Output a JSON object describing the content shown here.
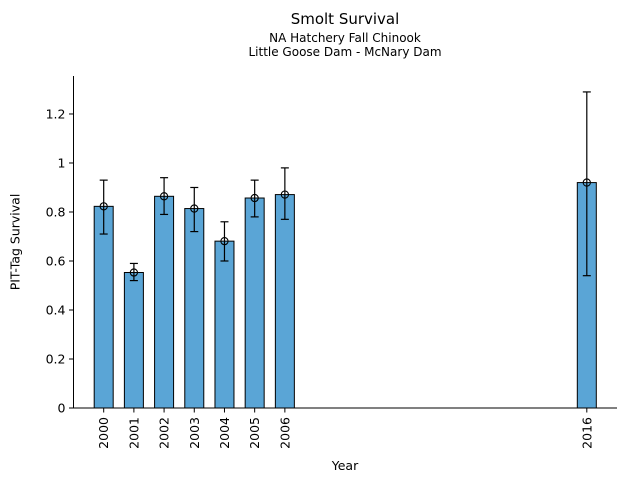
{
  "chart_data": {
    "type": "bar",
    "title": "Smolt Survival",
    "subtitle1": "NA Hatchery Fall Chinook",
    "subtitle2": "Little Goose Dam - McNary Dam",
    "xlabel": "Year",
    "ylabel": "PIT-Tag Survival",
    "categories": [
      2000,
      2001,
      2002,
      2003,
      2004,
      2005,
      2006,
      2016
    ],
    "values": [
      0.823,
      0.553,
      0.864,
      0.814,
      0.681,
      0.857,
      0.871,
      0.92
    ],
    "error_low": [
      0.71,
      0.52,
      0.79,
      0.72,
      0.6,
      0.78,
      0.77,
      0.54
    ],
    "error_high": [
      0.93,
      0.59,
      0.94,
      0.9,
      0.76,
      0.93,
      0.98,
      1.29
    ],
    "xlim": [
      1999,
      2017
    ],
    "ylim": [
      0,
      1.355
    ],
    "yticks": [
      0,
      0.2,
      0.4,
      0.6,
      0.8,
      1.0,
      1.2
    ],
    "ytick_labels": [
      "0",
      "0.2",
      "0.4",
      "0.6",
      "0.8",
      "1",
      "1.2"
    ],
    "grid": false,
    "legend": false,
    "marker": "open-circle",
    "bar_color": "#5AA5D6",
    "bar_edge_color": "#000000",
    "error_bar_color": "#000000",
    "axis_color": "#000000"
  }
}
